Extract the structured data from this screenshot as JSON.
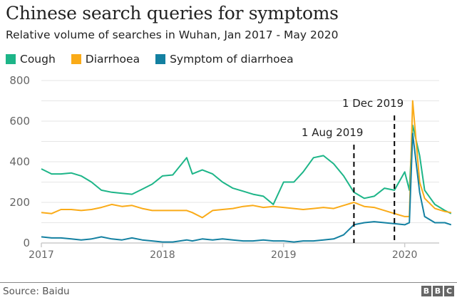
{
  "chart_data": {
    "type": "line",
    "title": "Chinese search queries for symptoms",
    "subtitle": "Relative volume of searches in Wuhan, Jan 2017 - May 2020",
    "xlabel": "",
    "ylabel": "",
    "ylim": [
      0,
      800
    ],
    "yticks": [
      0,
      200,
      400,
      600,
      800
    ],
    "xticks": [
      "2017",
      "2018",
      "2019",
      "2020"
    ],
    "grid": true,
    "legend": "top-left",
    "x": [
      "2017-01-01",
      "2017-02-01",
      "2017-03-01",
      "2017-04-01",
      "2017-05-01",
      "2017-06-01",
      "2017-07-01",
      "2017-08-01",
      "2017-09-01",
      "2017-10-01",
      "2017-11-01",
      "2017-12-01",
      "2018-01-01",
      "2018-02-01",
      "2018-03-15",
      "2018-04-01",
      "2018-05-01",
      "2018-06-01",
      "2018-07-01",
      "2018-08-01",
      "2018-09-01",
      "2018-10-01",
      "2018-11-01",
      "2018-12-01",
      "2019-01-01",
      "2019-02-01",
      "2019-03-01",
      "2019-04-01",
      "2019-05-01",
      "2019-06-01",
      "2019-07-01",
      "2019-08-01",
      "2019-09-01",
      "2019-10-01",
      "2019-11-01",
      "2019-12-01",
      "2020-01-01",
      "2020-01-15",
      "2020-01-25",
      "2020-02-15",
      "2020-03-01",
      "2020-04-01",
      "2020-05-01",
      "2020-05-20"
    ],
    "series": [
      {
        "name": "Cough",
        "color": "#1db588",
        "values": [
          365,
          340,
          340,
          345,
          330,
          300,
          260,
          250,
          245,
          240,
          265,
          290,
          330,
          335,
          420,
          340,
          360,
          340,
          300,
          270,
          255,
          240,
          230,
          190,
          300,
          300,
          350,
          420,
          430,
          390,
          330,
          250,
          220,
          230,
          270,
          260,
          350,
          260,
          580,
          430,
          260,
          190,
          160,
          145
        ]
      },
      {
        "name": "Diarrhoea",
        "color": "#faab18",
        "values": [
          150,
          145,
          165,
          165,
          160,
          165,
          175,
          190,
          180,
          185,
          170,
          160,
          160,
          160,
          160,
          150,
          125,
          160,
          165,
          170,
          180,
          185,
          175,
          180,
          175,
          170,
          165,
          170,
          175,
          170,
          185,
          200,
          180,
          175,
          160,
          145,
          130,
          130,
          700,
          300,
          220,
          170,
          155,
          150
        ]
      },
      {
        "name": "Symptom of diarrhoea",
        "color": "#1380a1",
        "values": [
          30,
          25,
          25,
          20,
          15,
          20,
          30,
          20,
          15,
          25,
          15,
          10,
          5,
          5,
          15,
          10,
          20,
          15,
          20,
          15,
          10,
          10,
          15,
          10,
          10,
          5,
          10,
          10,
          15,
          20,
          40,
          90,
          100,
          105,
          100,
          95,
          90,
          100,
          540,
          250,
          130,
          100,
          100,
          90
        ]
      }
    ],
    "annotations": [
      {
        "label": "1 Aug 2019",
        "date": "2019-08-01"
      },
      {
        "label": "1 Dec 2019",
        "date": "2019-12-01"
      }
    ]
  },
  "footer": {
    "source": "Source: Baidu",
    "logo": [
      "B",
      "B",
      "C"
    ]
  }
}
